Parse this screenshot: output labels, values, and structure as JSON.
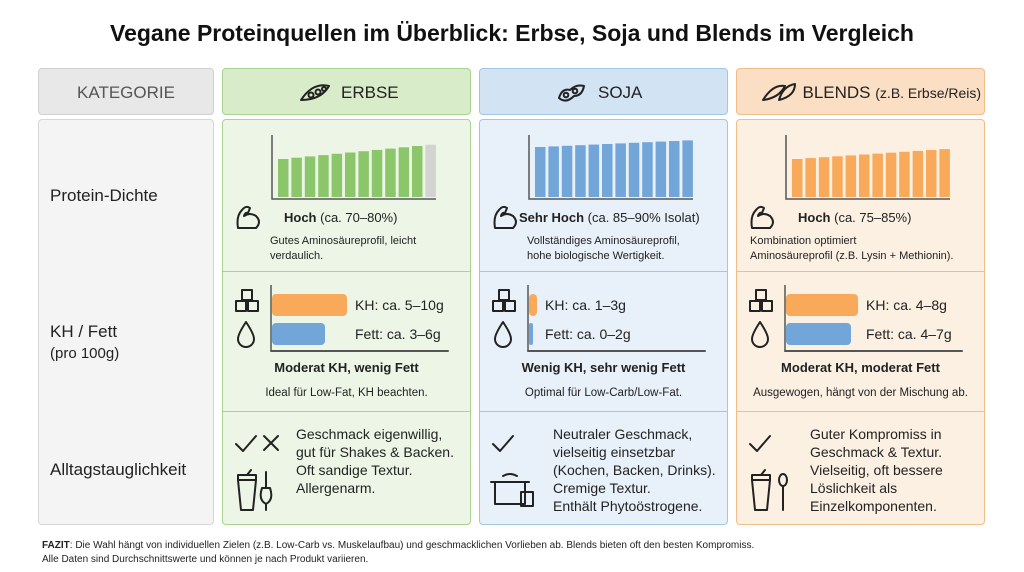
{
  "title": "Vegane Proteinquellen im Überblick: Erbse, Soja und Blends im Vergleich",
  "header": {
    "category": "KATEGORIE",
    "columns": [
      {
        "name": "ERBSE"
      },
      {
        "name": "SOJA"
      },
      {
        "name": "BLENDS",
        "note": "(z.B. Erbse/Reis)"
      }
    ]
  },
  "rows": [
    {
      "label": "Protein-Dichte"
    },
    {
      "label": "KH / Fett",
      "sublabel": "(pro 100g)"
    },
    {
      "label": "Alltagstauglichkeit"
    }
  ],
  "protein": [
    {
      "level": "Hoch",
      "range": "(ca. 70–80%)",
      "description": [
        "Gutes Aminosäureprofil, leicht",
        "verdaulich."
      ]
    },
    {
      "level": "Sehr Hoch",
      "range": "(ca. 85–90% Isolat)",
      "description": [
        "Vollständiges Aminosäureprofil,",
        "hohe biologische Wertigkeit."
      ]
    },
    {
      "level": "Hoch",
      "range": "(ca. 75–85%)",
      "description": [
        "Kombination optimiert",
        "Aminosäureprofil (z.B. Lysin + Methionin)."
      ]
    }
  ],
  "macros": [
    {
      "carbs": "KH: ca. 5–10g",
      "fat": "Fett: ca. 3–6g",
      "summary": "Moderat KH, wenig Fett",
      "note": "Ideal für Low-Fat, KH beachten."
    },
    {
      "carbs": "KH: ca. 1–3g",
      "fat": "Fett: ca. 0–2g",
      "summary": "Wenig KH, sehr wenig Fett",
      "note": "Optimal für Low-Carb/Low-Fat."
    },
    {
      "carbs": "KH: ca. 4–8g",
      "fat": "Fett: ca. 4–7g",
      "summary": "Moderat KH, moderat Fett",
      "note": "Ausgewogen, hängt von der Mischung ab."
    }
  ],
  "everyday": [
    {
      "lines": [
        "Geschmack eigenwillig,",
        "gut für Shakes & Backen.",
        "Oft sandige Textur.",
        "Allergenarm."
      ]
    },
    {
      "lines": [
        "Neutraler Geschmack,",
        "vielseitig einsetzbar",
        "(Kochen, Backen, Drinks).",
        "Cremige Textur.",
        "Enthält Phytoöstrogene."
      ]
    },
    {
      "lines": [
        "Guter Kompromiss in",
        "Geschmack & Textur.",
        "Vielseitig, oft bessere",
        "Löslichkeit als",
        "Einzelkomponenten."
      ]
    }
  ],
  "footer": {
    "label": "FAZIT",
    "text": ": Die Wahl hängt von individuellen Zielen (z.B. Low-Carb vs. Muskelaufbau) und geschmacklichen Vorlieben ab. Blends bieten oft den besten Kompromiss.",
    "note": "Alle Daten sind Durchschnittswerte und können je nach Produkt variieren."
  }
}
